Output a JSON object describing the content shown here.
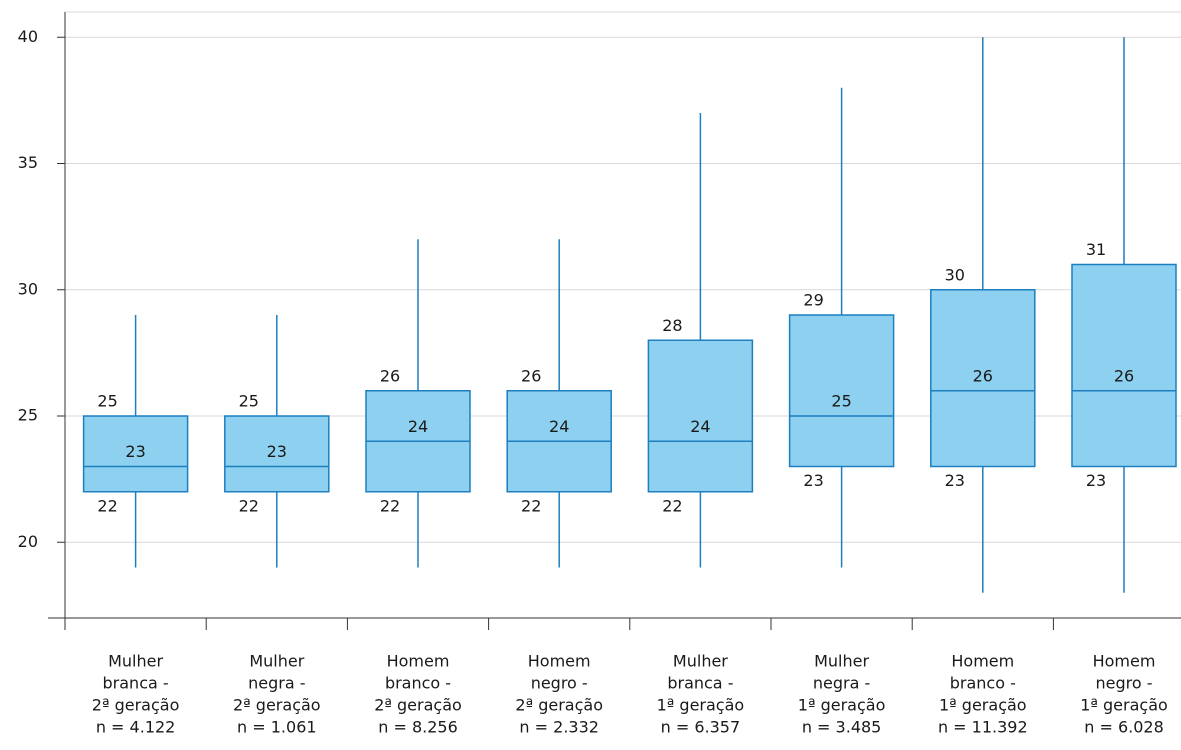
{
  "chart_data": {
    "type": "box",
    "categories": [
      [
        "Mulher",
        "branca -",
        "2ª geração",
        "n = 4.122"
      ],
      [
        "Mulher",
        "negra -",
        "2ª geração",
        "n = 1.061"
      ],
      [
        "Homem",
        "branco -",
        "2ª geração",
        "n = 8.256"
      ],
      [
        "Homem",
        "negro -",
        "2ª geração",
        "n = 2.332"
      ],
      [
        "Mulher",
        "branca -",
        "1ª geração",
        "n = 6.357"
      ],
      [
        "Mulher",
        "negra -",
        "1ª geração",
        "n = 3.485"
      ],
      [
        "Homem",
        "branco -",
        "1ª geração",
        "n = 11.392"
      ],
      [
        "Homem",
        "negro -",
        "1ª geração",
        "n = 6.028"
      ]
    ],
    "whisker_low": [
      19,
      19,
      19,
      19,
      19,
      19,
      18,
      18
    ],
    "q1": [
      22,
      22,
      22,
      22,
      22,
      23,
      23,
      23
    ],
    "median": [
      23,
      23,
      24,
      24,
      24,
      25,
      26,
      26
    ],
    "q3": [
      25,
      25,
      26,
      26,
      28,
      29,
      30,
      31
    ],
    "whisker_high": [
      29,
      29,
      32,
      32,
      37,
      38,
      40,
      40
    ],
    "color": "#8dd0ef",
    "edge_color": "#1d7fc0",
    "ylim": [
      17,
      41
    ],
    "yticks": [
      20,
      25,
      30,
      35,
      40
    ],
    "grid": true
  }
}
